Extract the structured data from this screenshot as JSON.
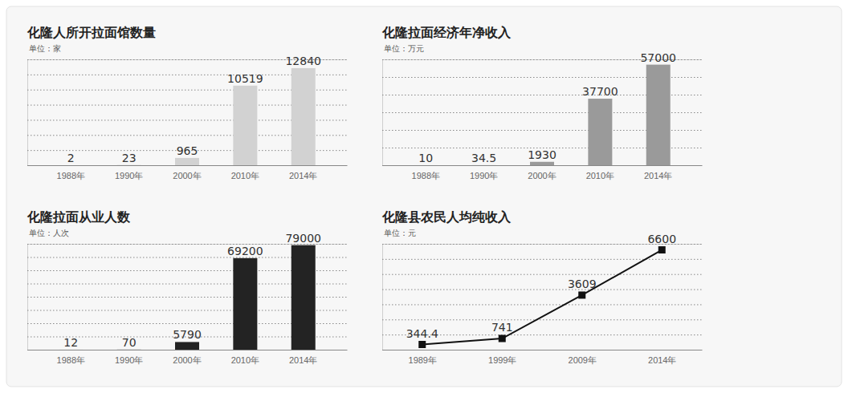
{
  "chart_data": [
    {
      "type": "bar",
      "title": "化隆人所开拉面馆数量",
      "subtitle": "单位：家",
      "categories": [
        "1988年",
        "1990年",
        "2000年",
        "2010年",
        "2014年"
      ],
      "values": [
        2,
        23,
        965,
        10519,
        12840
      ],
      "color": "#d2d2d2",
      "ylim": [
        0,
        14000
      ],
      "yticks": [
        0,
        2000,
        4000,
        6000,
        8000,
        10000,
        12000,
        14000
      ],
      "grid": true,
      "data_labels": true,
      "tick_labels": "x"
    },
    {
      "type": "bar",
      "title": "化隆拉面经济年净收入",
      "subtitle": "单位：万元",
      "categories": [
        "1988年",
        "1990年",
        "2000年",
        "2010年",
        "2014年"
      ],
      "values": [
        10,
        34.5,
        1930,
        37700,
        57000
      ],
      "color": "#9a9a9a",
      "ylim": [
        0,
        60000
      ],
      "yticks": [
        0,
        10000,
        20000,
        30000,
        40000,
        50000,
        60000
      ],
      "grid": true,
      "data_labels": true,
      "tick_labels": "x"
    },
    {
      "type": "bar",
      "title": "化隆拉面从业人数",
      "subtitle": "单位：人次",
      "categories": [
        "1988年",
        "1990年",
        "2000年",
        "2010年",
        "2014年"
      ],
      "values": [
        12,
        70,
        5790,
        69200,
        79000
      ],
      "color": "#232323",
      "ylim": [
        0,
        80000
      ],
      "yticks": [
        0,
        10000,
        20000,
        30000,
        40000,
        50000,
        60000,
        70000,
        80000
      ],
      "grid": true,
      "data_labels": true,
      "tick_labels": "x"
    },
    {
      "type": "line",
      "title": "化隆县农民人均纯收入",
      "subtitle": "单位：元",
      "categories": [
        "1989年",
        "1999年",
        "2009年",
        "2014年"
      ],
      "values": [
        344.4,
        741,
        3609,
        6600
      ],
      "color": "#111111",
      "marker": "square",
      "line_style": "solid",
      "ylim": [
        0,
        7000
      ],
      "yticks": [
        0,
        1000,
        2000,
        3000,
        4000,
        5000,
        6000,
        7000
      ],
      "grid": true,
      "data_labels": true,
      "tick_labels": "x"
    }
  ]
}
